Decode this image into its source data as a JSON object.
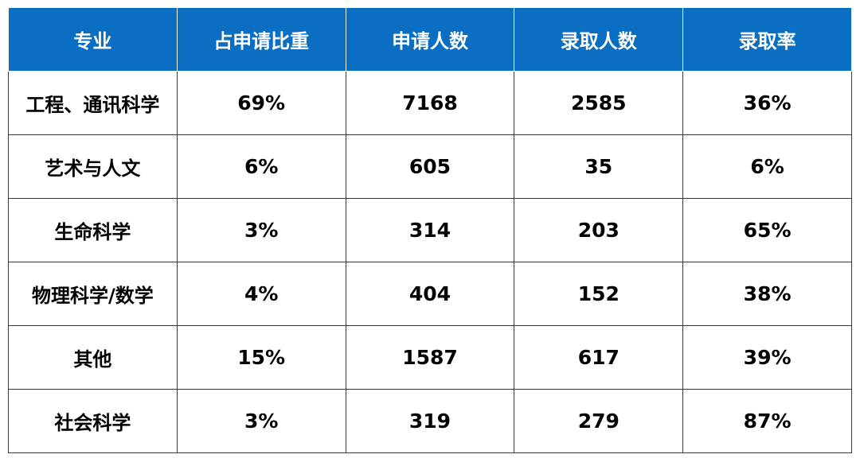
{
  "chart_data": {
    "type": "table",
    "columns": [
      "专业",
      "占申请比重",
      "申请人数",
      "录取人数",
      "录取率"
    ],
    "rows": [
      [
        "工程、通讯科学",
        "69%",
        "7168",
        "2585",
        "36%"
      ],
      [
        "艺术与人文",
        "6%",
        "605",
        "35",
        "6%"
      ],
      [
        "生命科学",
        "3%",
        "314",
        "203",
        "65%"
      ],
      [
        "物理科学/数学",
        "4%",
        "404",
        "152",
        "38%"
      ],
      [
        "其他",
        "15%",
        "1587",
        "617",
        "39%"
      ],
      [
        "社会科学",
        "3%",
        "319",
        "279",
        "87%"
      ]
    ]
  },
  "colors": {
    "header_bg": "#0a6fc2",
    "header_text": "#ffffff",
    "body_text": "#000000",
    "grid": "#3a3a3a"
  }
}
